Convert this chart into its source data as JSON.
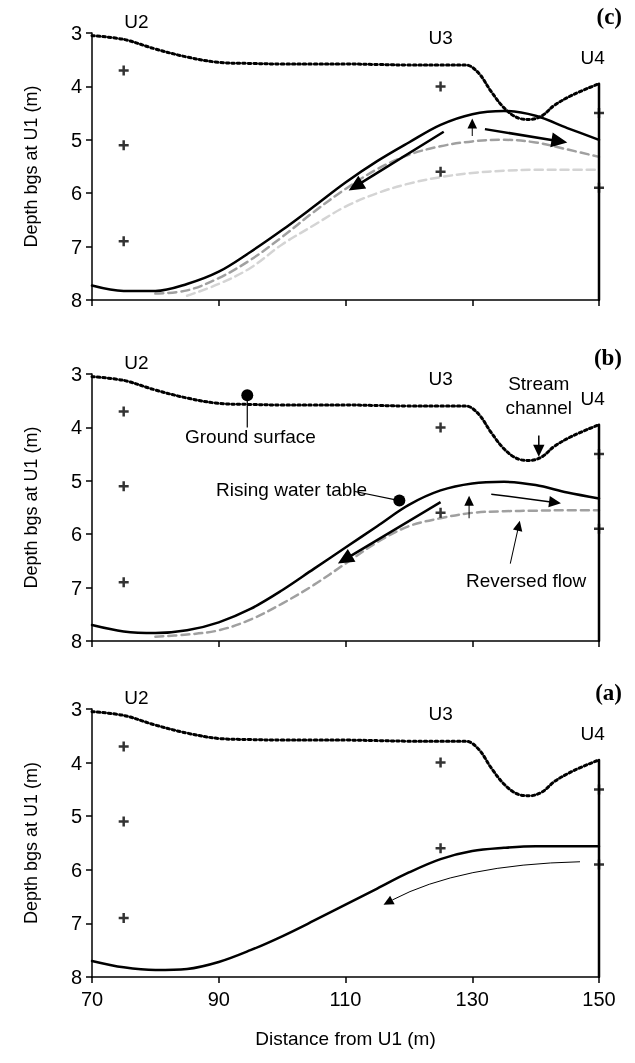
{
  "chart_data": [
    {
      "type": "line",
      "title": "(c)",
      "ylabel": "Depth bgs at U1 (m)",
      "xlim": [
        70,
        150
      ],
      "xticks": [
        {
          "value": 70,
          "label": null
        },
        {
          "value": 90,
          "label": null
        },
        {
          "value": 110,
          "label": null
        },
        {
          "value": 130,
          "label": null
        },
        {
          "value": 150,
          "label": null
        }
      ],
      "ylim": [
        8,
        3
      ],
      "yticks": [
        3,
        4,
        5,
        6,
        7,
        8
      ],
      "tick_labels": "y",
      "grid": false,
      "series": [
        {
          "line_style": "dotted",
          "color": "#000000",
          "x": [
            70,
            75,
            80,
            85,
            90,
            95,
            100,
            105,
            110,
            115,
            120,
            125,
            129,
            131,
            133,
            135,
            137,
            139,
            141,
            143,
            146,
            150
          ],
          "values": [
            3.05,
            3.12,
            3.3,
            3.45,
            3.55,
            3.57,
            3.58,
            3.58,
            3.58,
            3.59,
            3.6,
            3.6,
            3.6,
            3.75,
            4.1,
            4.4,
            4.58,
            4.62,
            4.55,
            4.35,
            4.15,
            3.95
          ]
        },
        {
          "line_style": "dashed",
          "color": "#d4d4d4",
          "x": [
            85,
            90,
            95,
            100,
            105,
            110,
            115,
            120,
            125,
            130,
            135,
            140,
            145,
            150
          ],
          "values": [
            7.92,
            7.7,
            7.4,
            6.96,
            6.6,
            6.25,
            6.0,
            5.82,
            5.7,
            5.62,
            5.58,
            5.56,
            5.56,
            5.56
          ]
        },
        {
          "line_style": "dashed",
          "color": "#a0a0a0",
          "x": [
            80,
            85,
            90,
            95,
            100,
            105,
            110,
            115,
            120,
            125,
            130,
            135,
            140,
            145,
            150
          ],
          "values": [
            7.88,
            7.82,
            7.59,
            7.25,
            6.82,
            6.35,
            5.92,
            5.55,
            5.28,
            5.12,
            5.03,
            5.0,
            5.05,
            5.18,
            5.32
          ]
        },
        {
          "line_style": "solid",
          "color": "#000000",
          "x": [
            70,
            75,
            80,
            85,
            90,
            95,
            100,
            105,
            110,
            115,
            120,
            125,
            130,
            135,
            140,
            145,
            150
          ],
          "values": [
            7.73,
            7.83,
            7.83,
            7.7,
            7.47,
            7.1,
            6.69,
            6.25,
            5.8,
            5.4,
            5.05,
            4.72,
            4.52,
            4.46,
            4.55,
            4.78,
            5.0
          ]
        },
        {
          "line_style": "solid",
          "color": "#000000",
          "x": [
            150,
            150
          ],
          "values": [
            3.95,
            8
          ]
        },
        {
          "type": "scatter",
          "marker": "cross",
          "color": "#000000",
          "x": [
            75,
            75,
            75,
            125,
            125,
            150,
            150
          ],
          "values": [
            3.7,
            5.1,
            6.9,
            4.0,
            5.6,
            4.5,
            5.9
          ]
        }
      ],
      "annotations": [
        "U2",
        "U3",
        "U4"
      ]
    },
    {
      "type": "line",
      "title": "(b)",
      "ylabel": "Depth bgs at U1 (m)",
      "xlim": [
        70,
        150
      ],
      "xticks": [
        {
          "value": 70,
          "label": null
        },
        {
          "value": 90,
          "label": null
        },
        {
          "value": 110,
          "label": null
        },
        {
          "value": 130,
          "label": null
        },
        {
          "value": 150,
          "label": null
        }
      ],
      "ylim": [
        8,
        3
      ],
      "yticks": [
        3,
        4,
        5,
        6,
        7,
        8
      ],
      "tick_labels": "y",
      "grid": false,
      "series": [
        {
          "line_style": "dotted",
          "color": "#000000",
          "x": [
            70,
            75,
            80,
            85,
            90,
            95,
            100,
            105,
            110,
            115,
            120,
            125,
            129,
            131,
            133,
            135,
            137,
            139,
            141,
            143,
            146,
            150
          ],
          "values": [
            3.05,
            3.12,
            3.3,
            3.45,
            3.55,
            3.57,
            3.58,
            3.58,
            3.58,
            3.59,
            3.6,
            3.6,
            3.6,
            3.75,
            4.1,
            4.4,
            4.58,
            4.62,
            4.55,
            4.35,
            4.15,
            3.95
          ]
        },
        {
          "line_style": "dashed",
          "color": "#a0a0a0",
          "x": [
            80,
            85,
            90,
            95,
            100,
            105,
            110,
            115,
            120,
            125,
            130,
            135,
            140,
            145,
            150
          ],
          "values": [
            7.92,
            7.88,
            7.8,
            7.6,
            7.3,
            6.95,
            6.55,
            6.15,
            5.85,
            5.7,
            5.6,
            5.57,
            5.56,
            5.55,
            5.55
          ]
        },
        {
          "line_style": "solid",
          "color": "#000000",
          "x": [
            70,
            75,
            80,
            85,
            90,
            95,
            100,
            105,
            110,
            115,
            120,
            125,
            130,
            135,
            140,
            145,
            150
          ],
          "values": [
            7.7,
            7.82,
            7.85,
            7.8,
            7.65,
            7.4,
            7.05,
            6.65,
            6.25,
            5.85,
            5.45,
            5.18,
            5.05,
            5.02,
            5.08,
            5.22,
            5.33
          ]
        },
        {
          "line_style": "solid",
          "color": "#000000",
          "x": [
            150,
            150
          ],
          "values": [
            3.95,
            8
          ]
        },
        {
          "type": "scatter",
          "marker": "cross",
          "color": "#000000",
          "x": [
            75,
            75,
            75,
            125,
            125,
            150,
            150
          ],
          "values": [
            3.7,
            5.1,
            6.9,
            4.0,
            5.6,
            4.5,
            5.9
          ]
        }
      ],
      "annotations": [
        "U2",
        "U3",
        "U4",
        "Ground surface",
        "Stream\nchannel",
        "Rising water table",
        "Reversed flow"
      ]
    },
    {
      "type": "line",
      "title": "(a)",
      "xlabel": "Distance from U1 (m)",
      "ylabel": "Depth bgs at U1 (m)",
      "xlim": [
        70,
        150
      ],
      "xticks": [
        70,
        90,
        110,
        130,
        150
      ],
      "ylim": [
        8,
        3
      ],
      "yticks": [
        3,
        4,
        5,
        6,
        7,
        8
      ],
      "grid": false,
      "series": [
        {
          "line_style": "dotted",
          "color": "#000000",
          "x": [
            70,
            75,
            80,
            85,
            90,
            95,
            100,
            105,
            110,
            115,
            120,
            125,
            129,
            131,
            133,
            135,
            137,
            139,
            141,
            143,
            146,
            150
          ],
          "values": [
            3.05,
            3.12,
            3.3,
            3.45,
            3.55,
            3.57,
            3.58,
            3.58,
            3.58,
            3.59,
            3.6,
            3.6,
            3.6,
            3.75,
            4.1,
            4.4,
            4.58,
            4.62,
            4.55,
            4.35,
            4.15,
            3.95
          ]
        },
        {
          "line_style": "solid",
          "color": "#000000",
          "x": [
            70,
            75,
            80,
            85,
            90,
            95,
            100,
            105,
            110,
            115,
            120,
            125,
            130,
            135,
            140,
            145,
            150
          ],
          "values": [
            7.7,
            7.82,
            7.87,
            7.85,
            7.72,
            7.5,
            7.24,
            6.95,
            6.65,
            6.35,
            6.05,
            5.8,
            5.65,
            5.59,
            5.56,
            5.56,
            5.56
          ]
        },
        {
          "line_style": "solid",
          "color": "#000000",
          "x": [
            150,
            150
          ],
          "values": [
            3.95,
            8
          ]
        },
        {
          "type": "scatter",
          "marker": "cross",
          "color": "#000000",
          "x": [
            75,
            75,
            75,
            125,
            125,
            150,
            150
          ],
          "values": [
            3.7,
            5.1,
            6.9,
            4.0,
            5.6,
            4.5,
            5.9
          ]
        }
      ],
      "annotations": [
        "U2",
        "U3",
        "U4"
      ]
    }
  ]
}
